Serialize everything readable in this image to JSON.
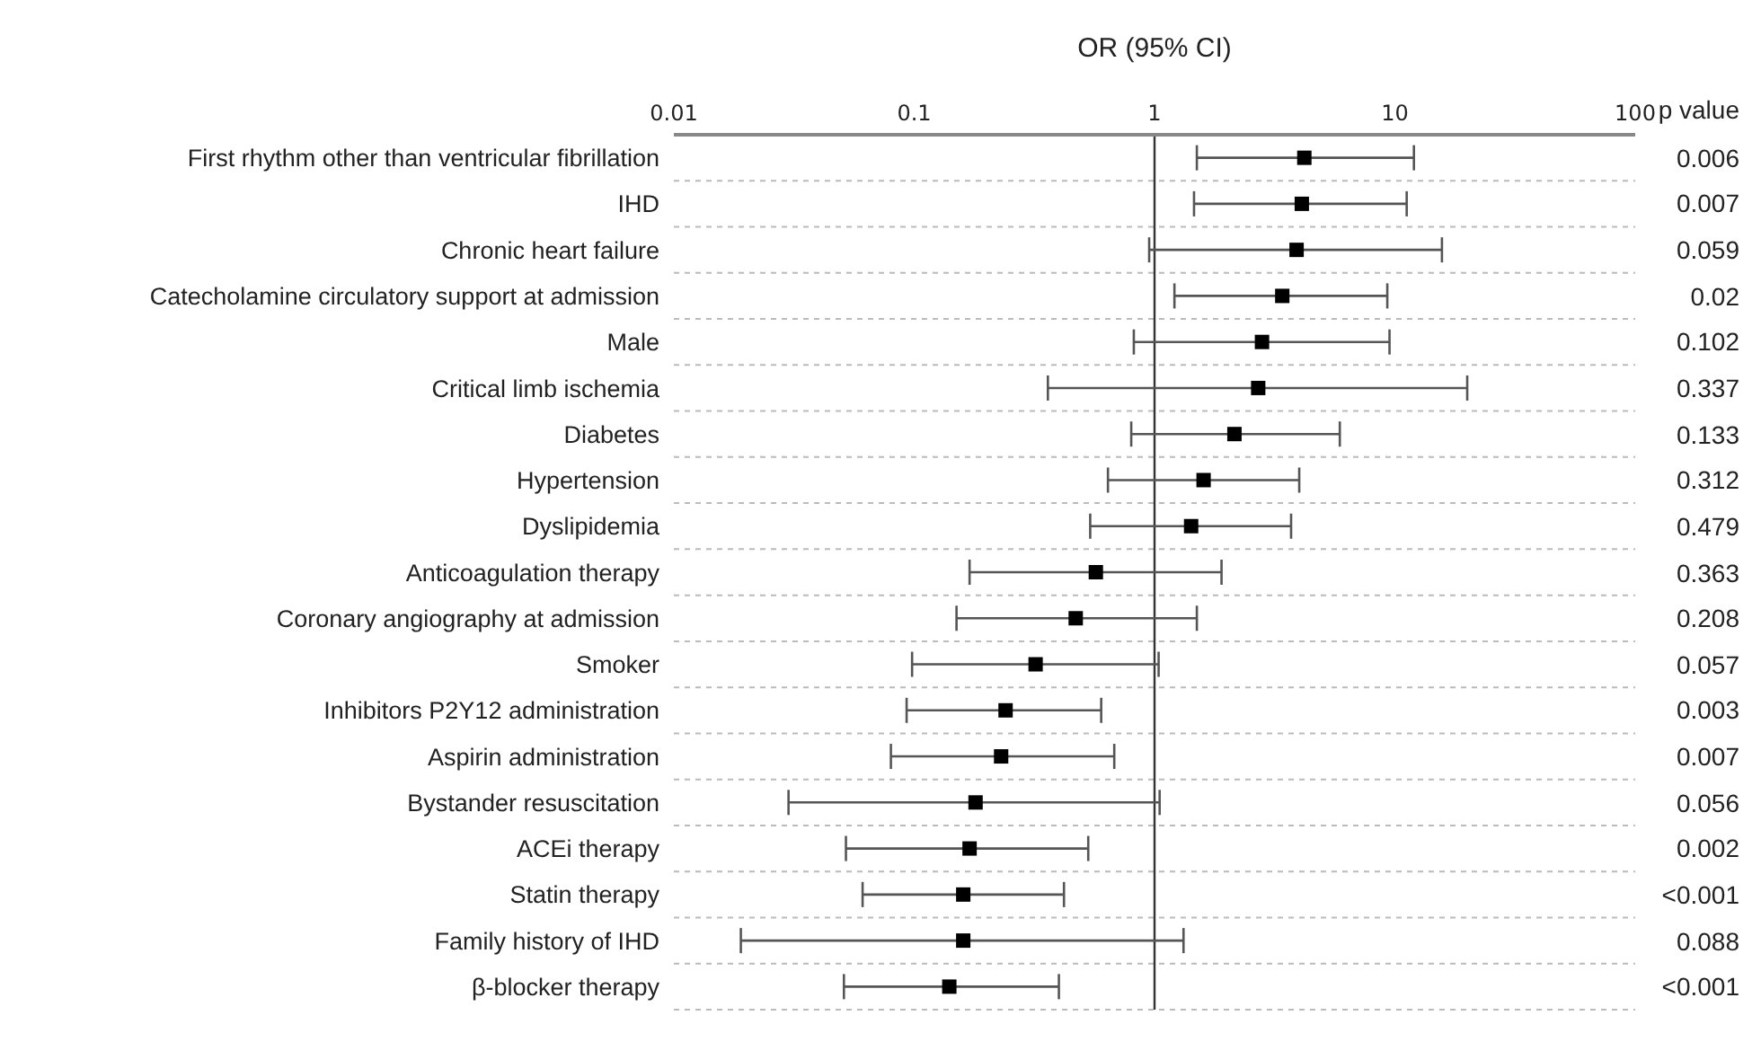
{
  "chart_data": {
    "type": "scatter",
    "orientation": "horizontal",
    "xlabel": "OR (95% CI)",
    "log": "x",
    "xlim": [
      0.01,
      100
    ],
    "xticks": [
      0.01,
      0.1,
      1,
      10,
      100
    ],
    "grid": "y",
    "marker": "square",
    "color": "#000000",
    "categories": [
      "First rhythm other than ventricular fibrillation",
      "IHD",
      "Chronic heart failure",
      "Catecholamine circulatory support at admission",
      "Male",
      "Critical limb ischemia",
      "Diabetes",
      "Hypertension",
      "Dyslipidemia",
      "Anticoagulation therapy",
      "Coronary angiography at admission",
      "Smoker",
      "Inhibitors P2Y12 administration",
      "Aspirin administration",
      "Bystander resuscitation",
      "ACEi therapy",
      "Statin therapy",
      "Family history of IHD",
      "β-blocker therapy"
    ],
    "values": [
      4.2,
      4.1,
      3.9,
      3.4,
      2.8,
      2.7,
      2.15,
      1.6,
      1.42,
      0.57,
      0.47,
      0.32,
      0.24,
      0.23,
      0.18,
      0.17,
      0.16,
      0.16,
      0.14
    ],
    "errors": [
      [
        1.5,
        12
      ],
      [
        1.46,
        11.2
      ],
      [
        0.95,
        15.7
      ],
      [
        1.21,
        9.3
      ],
      [
        0.82,
        9.5
      ],
      [
        0.36,
        20
      ],
      [
        0.8,
        5.9
      ],
      [
        0.64,
        4
      ],
      [
        0.54,
        3.7
      ],
      [
        0.17,
        1.9
      ],
      [
        0.15,
        1.5
      ],
      [
        0.098,
        1.04
      ],
      [
        0.093,
        0.6
      ],
      [
        0.08,
        0.68
      ],
      [
        0.03,
        1.05
      ],
      [
        0.052,
        0.53
      ],
      [
        0.061,
        0.42
      ],
      [
        0.019,
        1.32
      ],
      [
        0.051,
        0.4
      ]
    ],
    "ref_lines": [
      {
        "axis": "x",
        "value": 1,
        "color": "#333333"
      }
    ],
    "annotations": [
      "p value",
      "0.006",
      "0.007",
      "0.059",
      "0.02",
      "0.102",
      "0.337",
      "0.133",
      "0.312",
      "0.479",
      "0.363",
      "0.208",
      "0.057",
      "0.003",
      "0.007",
      "0.056",
      "0.002",
      "<0.001",
      "0.088",
      "<0.001"
    ]
  }
}
